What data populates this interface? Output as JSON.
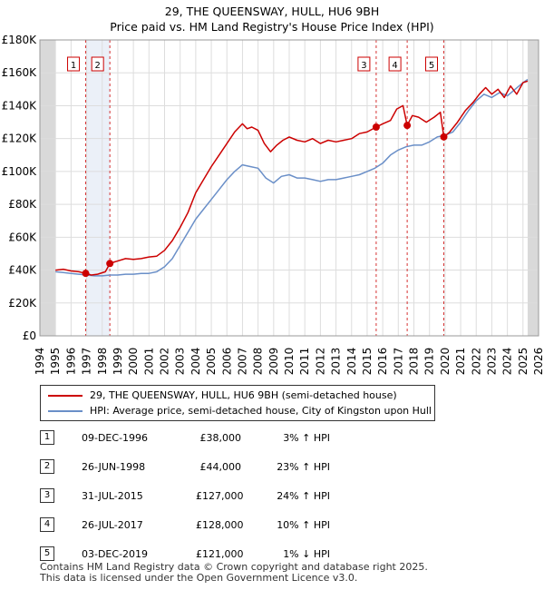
{
  "title_line1": "29, THE QUEENSWAY, HULL, HU6 9BH",
  "title_line2": "Price paid vs. HM Land Registry's House Price Index (HPI)",
  "chart_data": {
    "type": "line",
    "xlim": [
      1994,
      2026
    ],
    "ylim": [
      0,
      180000
    ],
    "yticks": [
      0,
      20000,
      40000,
      60000,
      80000,
      100000,
      120000,
      140000,
      160000,
      180000
    ],
    "ytick_labels": [
      "£0",
      "£20K",
      "£40K",
      "£60K",
      "£80K",
      "£100K",
      "£120K",
      "£140K",
      "£160K",
      "£180K"
    ],
    "xticks": [
      1994,
      1995,
      1996,
      1997,
      1998,
      1999,
      2000,
      2001,
      2002,
      2003,
      2004,
      2005,
      2006,
      2007,
      2008,
      2009,
      2010,
      2011,
      2012,
      2013,
      2014,
      2015,
      2016,
      2017,
      2018,
      2019,
      2020,
      2021,
      2022,
      2023,
      2024,
      2025,
      2026
    ],
    "data_start": 1995.0,
    "data_end": 2025.3,
    "grid": true,
    "series": [
      {
        "name": "29, THE QUEENSWAY, HULL, HU6 9BH (semi-detached house)",
        "color": "#cc0000",
        "x": [
          1995.0,
          1995.5,
          1996.0,
          1996.5,
          1996.94,
          1997.3,
          1997.7,
          1998.2,
          1998.49,
          1998.8,
          1999.5,
          2000.0,
          2000.5,
          2001.0,
          2001.5,
          2002.0,
          2002.5,
          2003.0,
          2003.5,
          2004.0,
          2004.5,
          2005.0,
          2005.5,
          2006.0,
          2006.5,
          2007.0,
          2007.3,
          2007.6,
          2008.0,
          2008.4,
          2008.8,
          2009.2,
          2009.6,
          2010.0,
          2010.5,
          2011.0,
          2011.5,
          2012.0,
          2012.5,
          2013.0,
          2013.5,
          2014.0,
          2014.5,
          2015.0,
          2015.58,
          2016.0,
          2016.5,
          2016.9,
          2017.3,
          2017.57,
          2017.9,
          2018.3,
          2018.8,
          2019.3,
          2019.7,
          2019.92,
          2020.3,
          2020.8,
          2021.3,
          2021.8,
          2022.2,
          2022.6,
          2023.0,
          2023.4,
          2023.8,
          2024.2,
          2024.6,
          2025.0,
          2025.3
        ],
        "y": [
          40000,
          40500,
          39500,
          39000,
          38000,
          37000,
          37500,
          39000,
          44000,
          45000,
          47000,
          46500,
          47000,
          48000,
          48500,
          52000,
          58000,
          66000,
          75000,
          87000,
          95000,
          103000,
          110000,
          117000,
          124000,
          129000,
          126000,
          127000,
          125000,
          117000,
          112000,
          116000,
          119000,
          121000,
          119000,
          118000,
          120000,
          117000,
          119000,
          118000,
          119000,
          120000,
          123000,
          124000,
          127000,
          129000,
          131000,
          138000,
          140000,
          128000,
          134000,
          133000,
          130000,
          133000,
          136000,
          121000,
          124000,
          130000,
          137000,
          142000,
          147000,
          151000,
          147000,
          150000,
          145000,
          152000,
          147000,
          154000,
          155000
        ]
      },
      {
        "name": "HPI: Average price, semi-detached house, City of Kingston upon Hull",
        "color": "#6a8fc8",
        "x": [
          1995.0,
          1995.5,
          1996.0,
          1996.5,
          1997.0,
          1997.5,
          1998.0,
          1998.5,
          1999.0,
          1999.5,
          2000.0,
          2000.5,
          2001.0,
          2001.5,
          2002.0,
          2002.5,
          2003.0,
          2003.5,
          2004.0,
          2004.5,
          2005.0,
          2005.5,
          2006.0,
          2006.5,
          2007.0,
          2007.5,
          2008.0,
          2008.5,
          2009.0,
          2009.5,
          2010.0,
          2010.5,
          2011.0,
          2011.5,
          2012.0,
          2012.5,
          2013.0,
          2013.5,
          2014.0,
          2014.5,
          2015.0,
          2015.5,
          2016.0,
          2016.5,
          2017.0,
          2017.5,
          2018.0,
          2018.5,
          2019.0,
          2019.5,
          2020.0,
          2020.5,
          2021.0,
          2021.5,
          2022.0,
          2022.5,
          2023.0,
          2023.5,
          2024.0,
          2024.5,
          2025.0,
          2025.3
        ],
        "y": [
          39000,
          38500,
          38000,
          37500,
          37000,
          36500,
          36500,
          37000,
          37000,
          37500,
          37500,
          38000,
          38000,
          39000,
          42000,
          47000,
          55000,
          63000,
          71000,
          77000,
          83000,
          89000,
          95000,
          100000,
          104000,
          103000,
          102000,
          96000,
          93000,
          97000,
          98000,
          96000,
          96000,
          95000,
          94000,
          95000,
          95000,
          96000,
          97000,
          98000,
          100000,
          102000,
          105000,
          110000,
          113000,
          115000,
          116000,
          116000,
          118000,
          121000,
          122000,
          124000,
          130000,
          137000,
          143000,
          147000,
          145000,
          148000,
          146000,
          150000,
          154000,
          156000
        ]
      }
    ],
    "sales": [
      {
        "label": "1",
        "x": 1996.94,
        "y": 38000
      },
      {
        "label": "2",
        "x": 1998.49,
        "y": 44000
      },
      {
        "label": "3",
        "x": 2015.58,
        "y": 127000
      },
      {
        "label": "4",
        "x": 2017.57,
        "y": 128000
      },
      {
        "label": "5",
        "x": 2019.92,
        "y": 121000
      }
    ]
  },
  "legend": {
    "red_label": "29, THE QUEENSWAY, HULL, HU6 9BH (semi-detached house)",
    "blue_label": "HPI: Average price, semi-detached house, City of Kingston upon Hull"
  },
  "sales_table": [
    {
      "num": "1",
      "date": "09-DEC-1996",
      "price": "£38,000",
      "hpi": "3% ↑ HPI"
    },
    {
      "num": "2",
      "date": "26-JUN-1998",
      "price": "£44,000",
      "hpi": "23% ↑ HPI"
    },
    {
      "num": "3",
      "date": "31-JUL-2015",
      "price": "£127,000",
      "hpi": "24% ↑ HPI"
    },
    {
      "num": "4",
      "date": "26-JUL-2017",
      "price": "£128,000",
      "hpi": "10% ↑ HPI"
    },
    {
      "num": "5",
      "date": "03-DEC-2019",
      "price": "£121,000",
      "hpi": "1% ↓ HPI"
    }
  ],
  "footer_line1": "Contains HM Land Registry data © Crown copyright and database right 2025.",
  "footer_line2": "This data is licensed under the Open Government Licence v3.0."
}
